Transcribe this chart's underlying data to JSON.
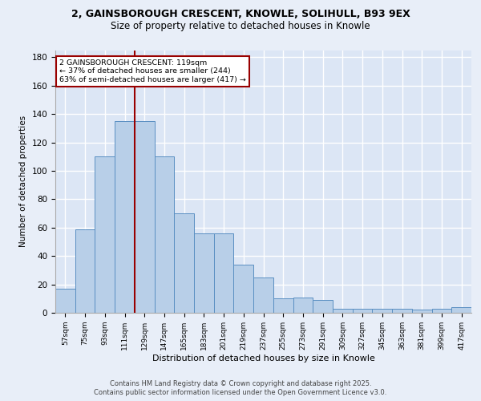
{
  "title_line1": "2, GAINSBOROUGH CRESCENT, KNOWLE, SOLIHULL, B93 9EX",
  "title_line2": "Size of property relative to detached houses in Knowle",
  "xlabel": "Distribution of detached houses by size in Knowle",
  "ylabel": "Number of detached properties",
  "categories": [
    "57sqm",
    "75sqm",
    "93sqm",
    "111sqm",
    "129sqm",
    "147sqm",
    "165sqm",
    "183sqm",
    "201sqm",
    "219sqm",
    "237sqm",
    "255sqm",
    "273sqm",
    "291sqm",
    "309sqm",
    "327sqm",
    "345sqm",
    "363sqm",
    "381sqm",
    "399sqm",
    "417sqm"
  ],
  "values": [
    17,
    59,
    110,
    135,
    135,
    110,
    70,
    56,
    56,
    34,
    25,
    10,
    11,
    9,
    3,
    3,
    3,
    3,
    2,
    3,
    4
  ],
  "bar_color": "#b8cfe8",
  "bar_edge_color": "#5a8fc2",
  "vline_x": 3.5,
  "vline_color": "#990000",
  "annotation_title": "2 GAINSBOROUGH CRESCENT: 119sqm",
  "annotation_line1": "← 37% of detached houses are smaller (244)",
  "annotation_line2": "63% of semi-detached houses are larger (417) →",
  "annotation_box_color": "#990000",
  "ylim": [
    0,
    185
  ],
  "yticks": [
    0,
    20,
    40,
    60,
    80,
    100,
    120,
    140,
    160,
    180
  ],
  "bg_color": "#dce6f5",
  "fig_color": "#e8eef8",
  "grid_color": "#ffffff",
  "footer_line1": "Contains HM Land Registry data © Crown copyright and database right 2025.",
  "footer_line2": "Contains public sector information licensed under the Open Government Licence v3.0."
}
